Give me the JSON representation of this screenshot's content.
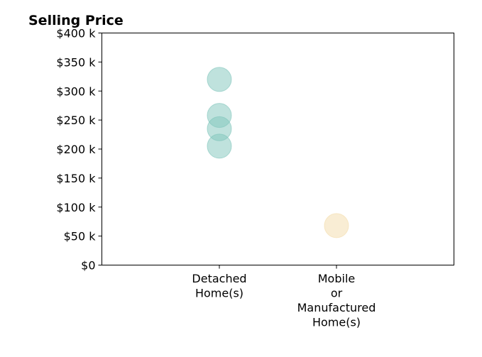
{
  "chart_data": {
    "type": "scatter",
    "title": "Selling Price",
    "xlabel": "",
    "ylabel": "",
    "categories": [
      [
        "Detached",
        "Home(s)"
      ],
      [
        "Mobile",
        "or",
        "Manufactured",
        "Home(s)"
      ]
    ],
    "ylim": [
      0,
      400000
    ],
    "y_ticks": [
      {
        "value": 0,
        "label": "$0"
      },
      {
        "value": 50000,
        "label": "$50 k"
      },
      {
        "value": 100000,
        "label": "$100 k"
      },
      {
        "value": 150000,
        "label": "$150 k"
      },
      {
        "value": 200000,
        "label": "$200 k"
      },
      {
        "value": 250000,
        "label": "$250 k"
      },
      {
        "value": 300000,
        "label": "$300 k"
      },
      {
        "value": 350000,
        "label": "$350 k"
      },
      {
        "value": 400000,
        "label": "$400 k"
      }
    ],
    "points": [
      {
        "category": 0,
        "y": 320000,
        "color": "#7fc5bb"
      },
      {
        "category": 0,
        "y": 258000,
        "color": "#7fc5bb"
      },
      {
        "category": 0,
        "y": 235000,
        "color": "#7fc5bb"
      },
      {
        "category": 0,
        "y": 205000,
        "color": "#7fc5bb"
      },
      {
        "category": 1,
        "y": 68000,
        "color": "#f3dcaa"
      }
    ],
    "grid": false,
    "legend": "none"
  }
}
